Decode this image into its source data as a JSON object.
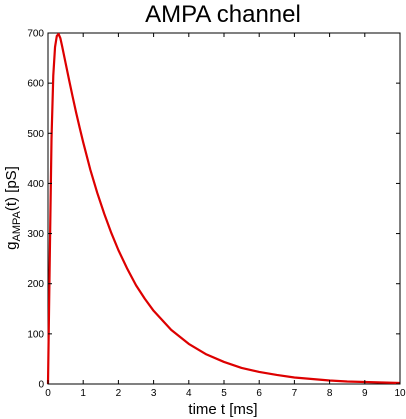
{
  "chart_data": {
    "type": "line",
    "title": "AMPA channel",
    "xlabel": "time t [ms]",
    "ylabel_main": "g",
    "ylabel_sub": "AMPA",
    "ylabel_tail": "(t) [pS]",
    "xlim": [
      0,
      10
    ],
    "ylim": [
      0,
      700
    ],
    "xticks": [
      0,
      1,
      2,
      3,
      4,
      5,
      6,
      7,
      8,
      9,
      10
    ],
    "yticks": [
      0,
      100,
      200,
      300,
      400,
      500,
      600,
      700
    ],
    "grid": false,
    "series": [
      {
        "color": "#dd0000",
        "x": [
          0,
          0.05,
          0.1,
          0.15,
          0.2,
          0.25,
          0.3,
          0.35,
          0.4,
          0.5,
          0.6,
          0.7,
          0.8,
          0.9,
          1.0,
          1.2,
          1.4,
          1.6,
          1.8,
          2.0,
          2.25,
          2.5,
          2.75,
          3.0,
          3.5,
          4.0,
          4.5,
          5.0,
          5.5,
          6.0,
          6.5,
          7.0,
          7.5,
          8.0,
          8.5,
          9.0,
          9.5,
          10.0
        ],
        "y": [
          0,
          250,
          490,
          615,
          672,
          694,
          698,
          690,
          674,
          640,
          606,
          573,
          541,
          511,
          482,
          428,
          381,
          339,
          301,
          267,
          230,
          197,
          170,
          146,
          108,
          80,
          59,
          44,
          32,
          24,
          18,
          13,
          10,
          7,
          5,
          4,
          3,
          2
        ]
      }
    ]
  }
}
